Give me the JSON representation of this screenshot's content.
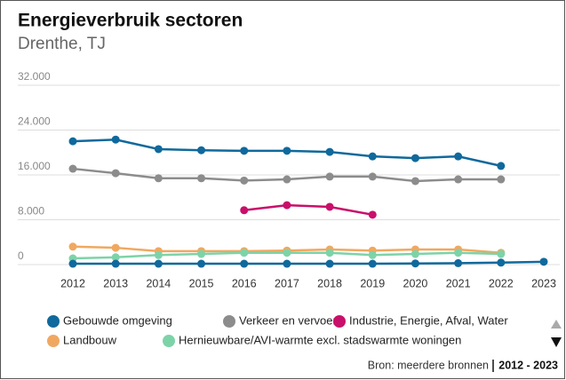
{
  "chart_data": {
    "type": "line",
    "title": "Energieverbruik sectoren",
    "subtitle": "Drenthe, TJ",
    "categories": [
      "2012",
      "2013",
      "2014",
      "2015",
      "2016",
      "2017",
      "2018",
      "2019",
      "2020",
      "2021",
      "2022",
      "2023"
    ],
    "ylim": [
      0,
      32000
    ],
    "yticks": [
      0,
      {
        "value": 8000,
        "label": "8.000"
      },
      {
        "value": 16000,
        "label": "16.000"
      },
      {
        "value": 24000,
        "label": "24.000"
      },
      {
        "value": 32000,
        "label": "32.000"
      }
    ],
    "grid": true,
    "legend": "bottom",
    "series": [
      {
        "name": "Gebouwde omgeving",
        "color": "#10699c",
        "values": [
          22000,
          22300,
          20600,
          20400,
          20300,
          20300,
          20100,
          19300,
          19000,
          19300,
          17600,
          null
        ]
      },
      {
        "name": "Verkeer en vervoer",
        "color": "#8c8c8c",
        "values": [
          17100,
          16300,
          15400,
          15400,
          15000,
          15200,
          15700,
          15700,
          14900,
          15200,
          15200,
          null
        ]
      },
      {
        "name": "Industrie, Energie, Afval, Water",
        "color": "#c8106b",
        "values": [
          null,
          null,
          null,
          null,
          9700,
          10600,
          10300,
          8900,
          null,
          null,
          null,
          null
        ]
      },
      {
        "name": "Landbouw",
        "color": "#f0a860",
        "values": [
          3200,
          3000,
          2400,
          2400,
          2400,
          2500,
          2700,
          2500,
          2700,
          2700,
          2100,
          null
        ]
      },
      {
        "name": "Hernieuwbare/AVI-warmte excl. stadswarmte woningen",
        "color": "#7dd3a8",
        "values": [
          1100,
          1300,
          1700,
          1900,
          2100,
          2100,
          2100,
          1700,
          1900,
          2100,
          1900,
          null
        ]
      },
      {
        "color": "#10699c",
        "values": [
          150,
          150,
          150,
          150,
          150,
          150,
          150,
          150,
          200,
          250,
          350,
          500
        ]
      }
    ],
    "source": "Bron: meerdere bronnen",
    "period": "2012 - 2023"
  }
}
